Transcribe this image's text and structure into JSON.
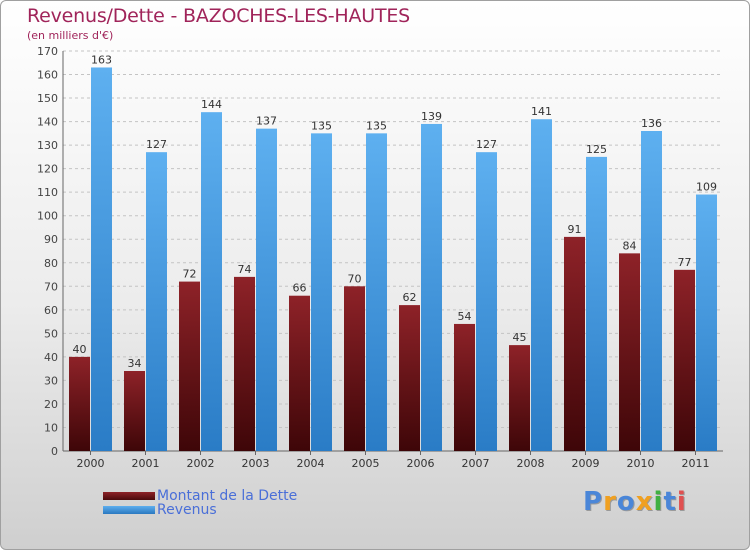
{
  "chart_data": {
    "type": "bar",
    "title": "Revenus/Dette - BAZOCHES-LES-HAUTES",
    "subtitle": "(en milliers d'€)",
    "categories": [
      "2000",
      "2001",
      "2002",
      "2003",
      "2004",
      "2005",
      "2006",
      "2007",
      "2008",
      "2009",
      "2010",
      "2011"
    ],
    "series": [
      {
        "name": "Montant de la Dette",
        "values": [
          40,
          34,
          72,
          74,
          66,
          70,
          62,
          54,
          45,
          91,
          84,
          77
        ],
        "color": "#7a1e22"
      },
      {
        "name": "Revenus",
        "values": [
          163,
          127,
          144,
          137,
          135,
          135,
          139,
          127,
          141,
          125,
          136,
          109
        ],
        "color": "#4a9fe3"
      }
    ],
    "ylim": [
      0,
      170
    ],
    "yticks": [
      0,
      10,
      20,
      30,
      40,
      50,
      60,
      70,
      80,
      90,
      100,
      110,
      120,
      130,
      140,
      150,
      160,
      170
    ],
    "xlabel": "",
    "ylabel": "",
    "grid": true,
    "legend": "bottom-left"
  },
  "legend": {
    "items": [
      {
        "label": "Montant de la Dette",
        "color": "#7a1e22"
      },
      {
        "label": "Revenus",
        "color": "#4a9fe3"
      }
    ]
  },
  "logo": {
    "letters": [
      "P",
      "r",
      "o",
      "x",
      "i",
      "t",
      "i"
    ],
    "colors": [
      "#4a86d8",
      "#f0a020",
      "#4a86d8",
      "#f0a020",
      "#40b040",
      "#4a86d8",
      "#e05050"
    ]
  }
}
